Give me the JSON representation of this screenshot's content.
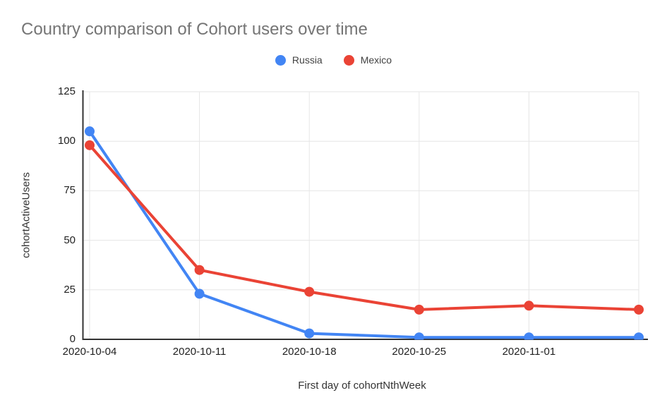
{
  "chart_data": {
    "type": "line",
    "title": "Country comparison of Cohort users over time",
    "xlabel": "First day of cohortNthWeek",
    "ylabel": "cohortActiveUsers",
    "categories": [
      "2020-10-04",
      "2020-10-11",
      "2020-10-18",
      "2020-10-25",
      "2020-11-01",
      ""
    ],
    "series": [
      {
        "name": "Russia",
        "color": "#4285F4",
        "values": [
          105,
          23,
          3,
          1,
          1,
          1
        ]
      },
      {
        "name": "Mexico",
        "color": "#EA4335",
        "values": [
          98,
          35,
          24,
          15,
          17,
          15
        ]
      }
    ],
    "y_ticks": [
      0,
      25,
      50,
      75,
      100,
      125
    ],
    "ylim": [
      0,
      125
    ],
    "grid": true,
    "legend_position": "top",
    "layout_note": "sixth x position has no visible tick label; low Russia points are clipped at the baseline"
  },
  "style": {
    "background": "#ffffff",
    "title_color": "#757575",
    "legend_text_color": "#424242",
    "tick_label_color": "#212121",
    "axis_title_color": "#333333",
    "grid_color": "#e6e6e6",
    "axis_line_color": "#333333"
  }
}
